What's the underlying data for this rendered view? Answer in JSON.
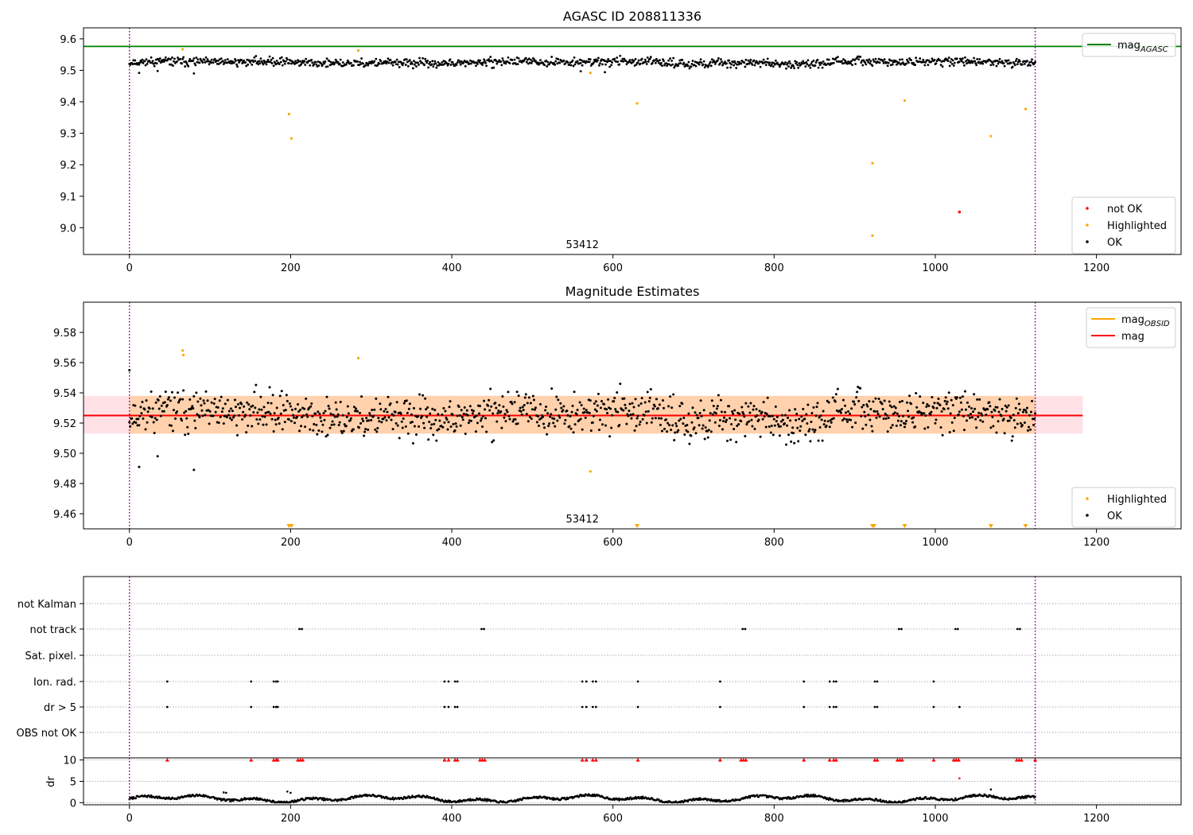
{
  "chart_data": [
    {
      "type": "scatter",
      "title": "AGASC ID 208811336",
      "annotation": "53412",
      "xlim": [
        -57,
        1305
      ],
      "ylim": [
        8.915,
        9.635
      ],
      "xticks": [
        0,
        200,
        400,
        600,
        800,
        1000,
        1200
      ],
      "yticks": [
        9.0,
        9.1,
        9.2,
        9.3,
        9.4,
        9.5,
        9.6
      ],
      "vlines": [
        0,
        1124
      ],
      "hline": {
        "name": "mag_AGASC",
        "value": 9.576,
        "color": "#008000"
      },
      "ok_series": {
        "name": "OK",
        "color": "#000000",
        "n": 1125,
        "mean": 9.525,
        "spread": 0.012,
        "outliers": [
          [
            12,
            9.492
          ],
          [
            35,
            9.498
          ],
          [
            80,
            9.49
          ],
          [
            560,
            9.497
          ],
          [
            590,
            9.494
          ]
        ]
      },
      "highlighted": {
        "name": "Highlighted",
        "color": "#ffa500",
        "points": [
          [
            66,
            9.567
          ],
          [
            198,
            9.361
          ],
          [
            201,
            9.284
          ],
          [
            284,
            9.563
          ],
          [
            572,
            9.492
          ],
          [
            630,
            9.395
          ],
          [
            922,
            9.205
          ],
          [
            922,
            8.975
          ],
          [
            962,
            9.404
          ],
          [
            1069,
            9.291
          ],
          [
            1112,
            9.377
          ]
        ]
      },
      "not_ok": {
        "name": "not OK",
        "color": "#ff0000",
        "points": [
          [
            1030,
            9.05
          ]
        ]
      },
      "legends": [
        {
          "position": "top-right",
          "entries": [
            {
              "label": "mag",
              "sub": "AGASC",
              "color": "#008000",
              "kind": "line"
            }
          ]
        },
        {
          "position": "bottom-right",
          "entries": [
            {
              "label": "not OK",
              "color": "#ff0000",
              "kind": "dot"
            },
            {
              "label": "Highlighted",
              "color": "#ffa500",
              "kind": "dot"
            },
            {
              "label": "OK",
              "color": "#000000",
              "kind": "dot"
            }
          ]
        }
      ]
    },
    {
      "type": "scatter",
      "title": "Magnitude Estimates",
      "annotation": "53412",
      "xlim": [
        -57,
        1305
      ],
      "ylim": [
        9.45,
        9.6
      ],
      "xticks": [
        0,
        200,
        400,
        600,
        800,
        1000,
        1200
      ],
      "yticks": [
        9.46,
        9.48,
        9.5,
        9.52,
        9.54,
        9.56,
        9.58
      ],
      "vlines": [
        0,
        1124
      ],
      "mag": {
        "name": "mag",
        "value": 9.525,
        "band": [
          9.513,
          9.538
        ],
        "band_x": [
          -57,
          1183
        ],
        "color": "#ff0000"
      },
      "mag_obsid": {
        "name": "mag_OBSID",
        "value": 9.525,
        "band": [
          9.513,
          9.538
        ],
        "band_x": [
          0,
          1124
        ],
        "color": "#ffa500"
      },
      "ok_series": {
        "name": "OK",
        "color": "#000000",
        "n": 1125,
        "mean": 9.525,
        "spread": 0.012,
        "outliers": [
          [
            12,
            9.491
          ],
          [
            35,
            9.498
          ],
          [
            80,
            9.489
          ],
          [
            0,
            9.555
          ]
        ]
      },
      "highlighted": {
        "name": "Highlighted",
        "color": "#ffa500",
        "points": [
          [
            66,
            9.568
          ],
          [
            67,
            9.565
          ],
          [
            284,
            9.563
          ],
          [
            572,
            9.488
          ]
        ]
      },
      "offscale_low": {
        "color": "#ffa500",
        "x": [
          198,
          201,
          630,
          922,
          924,
          962,
          1069,
          1112
        ]
      },
      "legends": [
        {
          "position": "top-right",
          "entries": [
            {
              "label": "mag",
              "sub": "OBSID",
              "color": "#ffa500",
              "kind": "line"
            },
            {
              "label": "mag",
              "color": "#ff0000",
              "kind": "line"
            }
          ]
        },
        {
          "position": "bottom-right",
          "entries": [
            {
              "label": "Highlighted",
              "color": "#ffa500",
              "kind": "dot"
            },
            {
              "label": "OK",
              "color": "#000000",
              "kind": "dot"
            }
          ]
        }
      ]
    },
    {
      "type": "scatter",
      "title": "",
      "xlim": [
        -57,
        1305
      ],
      "xticks": [
        0,
        200,
        400,
        600,
        800,
        1000,
        1200
      ],
      "vlines": [
        0,
        1124
      ],
      "flag_rows": [
        "not Kalman",
        "not track",
        "Sat. pixel.",
        "Ion. rad.",
        "dr > 5",
        "OBS not OK"
      ],
      "flags": {
        "not Kalman": [],
        "not track": [
          211,
          214,
          437,
          440,
          761,
          764,
          955,
          958,
          1025,
          1028,
          1102,
          1105
        ],
        "Sat. pixel.": [],
        "Ion. rad.": [
          47,
          151,
          179,
          182,
          184,
          391,
          396,
          404,
          407,
          562,
          567,
          575,
          579,
          631,
          733,
          837,
          869,
          874,
          877,
          925,
          928,
          998
        ],
        "dr > 5": [
          47,
          151,
          179,
          182,
          184,
          391,
          396,
          404,
          407,
          562,
          567,
          575,
          579,
          631,
          733,
          837,
          869,
          874,
          877,
          925,
          928,
          998,
          1030
        ],
        "OBS not OK": []
      },
      "dr": {
        "ylabel": "dr",
        "yticks": [
          0,
          5,
          10
        ],
        "ylim": [
          -0.5,
          10.5
        ],
        "clip_value": 10,
        "clipped_x": [
          47,
          151,
          179,
          182,
          184,
          209,
          212,
          215,
          391,
          396,
          404,
          407,
          435,
          438,
          441,
          562,
          567,
          575,
          579,
          631,
          733,
          759,
          762,
          765,
          837,
          869,
          874,
          877,
          925,
          928,
          953,
          956,
          959,
          998,
          1023,
          1026,
          1029,
          1101,
          1104,
          1107,
          1124
        ],
        "extra_points": [
          [
            1030,
            5.7
          ],
          [
            1069,
            3.1
          ],
          [
            196,
            2.6
          ],
          [
            200,
            2.3
          ],
          [
            117,
            2.4
          ],
          [
            120,
            2.3
          ]
        ],
        "color": "#000000",
        "clip_color": "#ff0000"
      }
    }
  ]
}
